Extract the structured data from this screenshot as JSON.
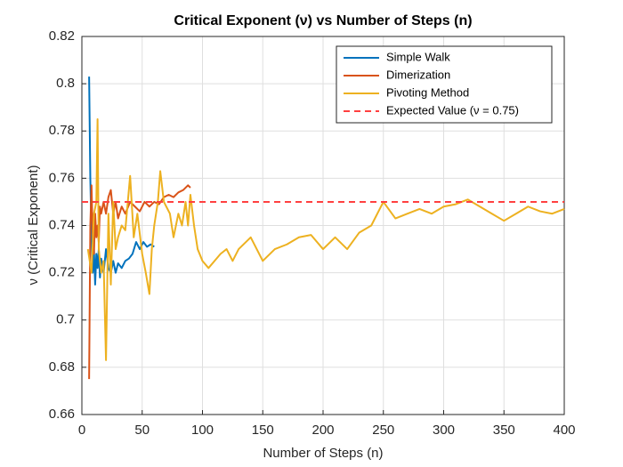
{
  "chart_data": {
    "type": "line",
    "title": "Critical Exponent (ν) vs Number of Steps (n)",
    "x_label": "Number of Steps (n)",
    "y_label": "ν (Critical Exponent)",
    "xlim": [
      0,
      400
    ],
    "ylim": [
      0.66,
      0.82
    ],
    "xticks": [
      0,
      50,
      100,
      150,
      200,
      250,
      300,
      350,
      400
    ],
    "yticks": [
      0.66,
      0.68,
      0.7,
      0.72,
      0.74,
      0.76,
      0.78,
      0.8,
      0.82
    ],
    "grid": true,
    "legend": "northeast",
    "series": [
      {
        "name": "Simple Walk",
        "color": "#0072bd",
        "x": [
          6,
          7,
          8,
          9,
          10,
          11,
          12,
          13,
          14,
          15,
          16,
          18,
          20,
          22,
          24,
          26,
          28,
          30,
          33,
          36,
          39,
          42,
          45,
          48,
          51,
          54,
          57,
          60
        ],
        "values": [
          0.803,
          0.76,
          0.735,
          0.72,
          0.73,
          0.715,
          0.728,
          0.722,
          0.73,
          0.718,
          0.726,
          0.72,
          0.73,
          0.722,
          0.72,
          0.725,
          0.72,
          0.724,
          0.722,
          0.725,
          0.726,
          0.728,
          0.733,
          0.73,
          0.733,
          0.731,
          0.732,
          0.731
        ]
      },
      {
        "name": "Dimerization",
        "color": "#d95319",
        "x": [
          6,
          7,
          8,
          9,
          10,
          11,
          12,
          13,
          14,
          15,
          16,
          18,
          20,
          22,
          24,
          26,
          28,
          30,
          33,
          36,
          40,
          44,
          48,
          52,
          56,
          60,
          64,
          68,
          72,
          76,
          80,
          84,
          88,
          90
        ],
        "values": [
          0.675,
          0.74,
          0.757,
          0.735,
          0.728,
          0.745,
          0.735,
          0.74,
          0.733,
          0.748,
          0.745,
          0.75,
          0.745,
          0.752,
          0.755,
          0.745,
          0.75,
          0.743,
          0.748,
          0.745,
          0.75,
          0.748,
          0.746,
          0.75,
          0.748,
          0.75,
          0.749,
          0.752,
          0.753,
          0.752,
          0.754,
          0.755,
          0.757,
          0.756
        ]
      },
      {
        "name": "Pivoting Method",
        "color": "#edb120",
        "x": [
          5,
          8,
          10,
          12,
          13,
          14,
          16,
          18,
          20,
          22,
          24,
          26,
          28,
          30,
          33,
          36,
          40,
          43,
          46,
          50,
          53,
          56,
          58,
          60,
          63,
          65,
          68,
          70,
          73,
          76,
          80,
          83,
          86,
          88,
          90,
          93,
          96,
          100,
          105,
          110,
          115,
          120,
          125,
          130,
          140,
          150,
          160,
          170,
          180,
          190,
          200,
          210,
          220,
          230,
          240,
          250,
          260,
          270,
          280,
          290,
          300,
          310,
          320,
          330,
          340,
          350,
          360,
          370,
          380,
          390,
          400
        ],
        "values": [
          0.73,
          0.72,
          0.745,
          0.75,
          0.785,
          0.73,
          0.72,
          0.725,
          0.683,
          0.745,
          0.715,
          0.75,
          0.73,
          0.735,
          0.74,
          0.738,
          0.761,
          0.735,
          0.745,
          0.728,
          0.72,
          0.711,
          0.73,
          0.74,
          0.75,
          0.763,
          0.75,
          0.748,
          0.745,
          0.735,
          0.745,
          0.74,
          0.75,
          0.74,
          0.753,
          0.74,
          0.73,
          0.725,
          0.722,
          0.725,
          0.728,
          0.73,
          0.725,
          0.73,
          0.735,
          0.725,
          0.73,
          0.732,
          0.735,
          0.736,
          0.73,
          0.735,
          0.73,
          0.737,
          0.74,
          0.75,
          0.743,
          0.745,
          0.747,
          0.745,
          0.748,
          0.749,
          0.751,
          0.748,
          0.745,
          0.742,
          0.745,
          0.748,
          0.746,
          0.745,
          0.747
        ]
      }
    ],
    "reference_line": {
      "name": "Expected Value (ν = 0.75)",
      "value": 0.75,
      "color": "#ff4040",
      "style": "dashed"
    }
  }
}
